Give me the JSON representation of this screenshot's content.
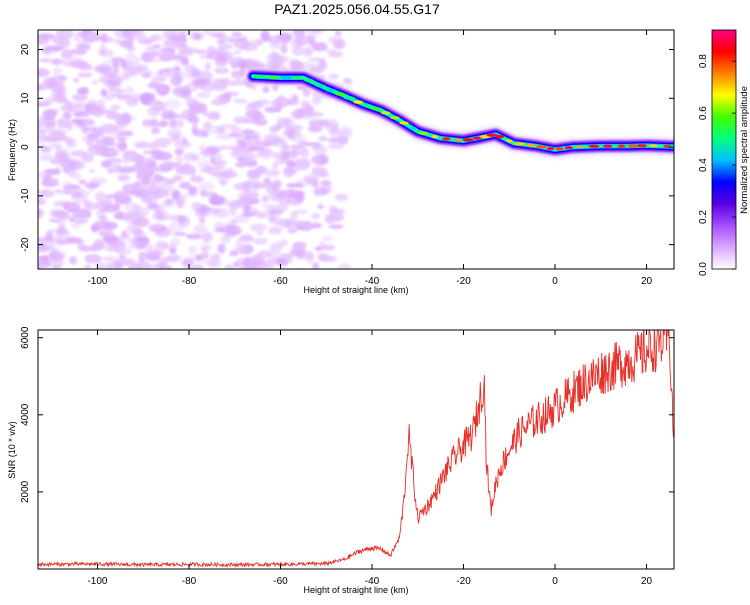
{
  "title": "PAZ1.2025.056.04.55.G17",
  "chart_data": [
    {
      "type": "heatmap",
      "xlabel": "Height of straight line (km)",
      "ylabel": "Frequency (Hz)",
      "xlim": [
        -113,
        26
      ],
      "ylim": [
        -25,
        24
      ],
      "xticks": [
        -100,
        -80,
        -60,
        -40,
        -20,
        0,
        20
      ],
      "yticks": [
        -20,
        -10,
        0,
        10,
        20
      ],
      "colorbar": {
        "label": "Normalized spectral amplitude",
        "range": [
          0,
          0.92
        ],
        "ticks": [
          0.0,
          0.2,
          0.4,
          0.6,
          0.8
        ],
        "colormap": [
          "#ffffff",
          "#d9a9ff",
          "#a64dff",
          "#5a00e0",
          "#0000ff",
          "#00c0ff",
          "#00ff80",
          "#40ff00",
          "#ffff00",
          "#ff8000",
          "#ff0000",
          "#ff0080"
        ]
      },
      "noise_region": {
        "x": [
          -113,
          -44
        ],
        "y": [
          -25,
          24
        ],
        "amplitude": [
          0.02,
          0.12
        ]
      },
      "signal_track": [
        {
          "x": -66,
          "y": 14.5
        },
        {
          "x": -60,
          "y": 14.2
        },
        {
          "x": -55,
          "y": 14.2
        },
        {
          "x": -50,
          "y": 12.0
        },
        {
          "x": -46,
          "y": 10.5
        },
        {
          "x": -42,
          "y": 8.8
        },
        {
          "x": -38,
          "y": 7.5
        },
        {
          "x": -34,
          "y": 5.5
        },
        {
          "x": -30,
          "y": 3.2
        },
        {
          "x": -25,
          "y": 1.8
        },
        {
          "x": -20,
          "y": 1.3
        },
        {
          "x": -16,
          "y": 2.0
        },
        {
          "x": -13,
          "y": 2.6
        },
        {
          "x": -9,
          "y": 0.8
        },
        {
          "x": -4,
          "y": 0.2
        },
        {
          "x": 0,
          "y": -0.5
        },
        {
          "x": 4,
          "y": 0.0
        },
        {
          "x": 10,
          "y": 0.2
        },
        {
          "x": 16,
          "y": 0.2
        },
        {
          "x": 20,
          "y": 0.3
        },
        {
          "x": 26,
          "y": 0.1
        }
      ]
    },
    {
      "type": "line",
      "xlabel": "Height of straight line (km)",
      "ylabel": "SNR (10 * v/v)",
      "xlim": [
        -113,
        26
      ],
      "ylim": [
        0,
        6200
      ],
      "xticks": [
        -100,
        -80,
        -60,
        -40,
        -20,
        0,
        20
      ],
      "yticks": [
        2000,
        4000,
        6000
      ],
      "series": [
        {
          "color": "#e8302a",
          "x": [
            -113,
            -100,
            -90,
            -80,
            -70,
            -60,
            -50,
            -46,
            -43,
            -40,
            -38,
            -36,
            -34,
            -33,
            -32,
            -31,
            -30,
            -29,
            -28,
            -26,
            -24,
            -22,
            -20,
            -18,
            -16.5,
            -15.5,
            -15,
            -14,
            -13,
            -12,
            -10,
            -8,
            -5,
            -2,
            0,
            3,
            6,
            10,
            14,
            18,
            22,
            24,
            25,
            26
          ],
          "y": [
            120,
            130,
            110,
            120,
            110,
            120,
            140,
            250,
            450,
            550,
            520,
            350,
            800,
            1800,
            3500,
            2400,
            1300,
            1500,
            1600,
            2000,
            2500,
            2900,
            3200,
            3500,
            4300,
            5000,
            2800,
            1500,
            2200,
            2600,
            3100,
            3500,
            3800,
            4000,
            4200,
            4500,
            4800,
            5100,
            5300,
            5500,
            5800,
            5950,
            6050,
            3200
          ]
        }
      ]
    }
  ]
}
